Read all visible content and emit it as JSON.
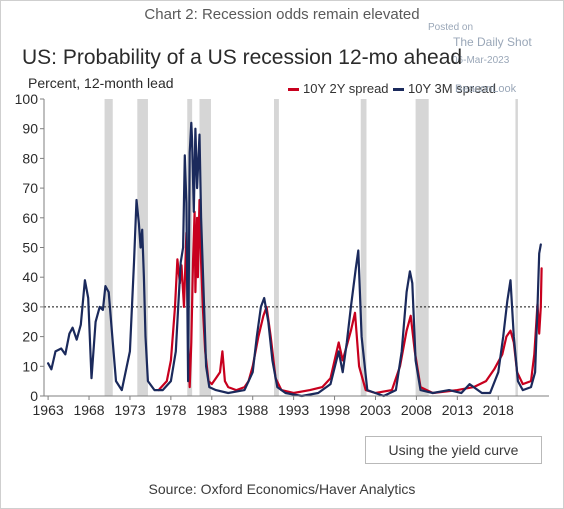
{
  "caption": "Chart 2: Recession odds remain elevated",
  "watermark": {
    "posted": "Posted on",
    "source": "The Daily Shot",
    "date": "06-Mar-2023",
    "brand": "BeaconLook"
  },
  "button_label": "Using the yield curve",
  "source": "Source: Oxford Economics/Haver Analytics",
  "colors": {
    "spread_10y2y": "#c8001e",
    "spread_10y3m": "#1b2a5c",
    "recession": "#d6d6d6"
  },
  "chart_data": {
    "type": "line",
    "title": "US: Probability of a US recession 12-mo ahead",
    "ylabel": "Percent, 12-month lead",
    "xlabel": "",
    "xlim": [
      1962.5,
      2024.2
    ],
    "ylim": [
      0,
      100
    ],
    "x_ticks": [
      1963,
      1968,
      1973,
      1978,
      1983,
      1988,
      1993,
      1998,
      2003,
      2008,
      2013,
      2018
    ],
    "y_ticks": [
      0,
      10,
      20,
      30,
      40,
      50,
      60,
      70,
      80,
      90,
      100
    ],
    "threshold": 30,
    "grid": false,
    "legend": "top-right",
    "recessions": [
      [
        1969.9,
        1970.9
      ],
      [
        1973.9,
        1975.2
      ],
      [
        1980.0,
        1980.6
      ],
      [
        1981.5,
        1982.9
      ],
      [
        1990.6,
        1991.2
      ],
      [
        2001.2,
        2001.9
      ],
      [
        2007.9,
        2009.5
      ],
      [
        2020.1,
        2020.4
      ]
    ],
    "series": [
      {
        "name": "10Y 2Y spread",
        "points": [
          [
            1976.5,
            2
          ],
          [
            1977.5,
            5
          ],
          [
            1978.0,
            12
          ],
          [
            1978.5,
            30
          ],
          [
            1978.8,
            46
          ],
          [
            1979.1,
            38
          ],
          [
            1979.3,
            44
          ],
          [
            1979.6,
            30
          ],
          [
            1979.9,
            55
          ],
          [
            1980.1,
            20
          ],
          [
            1980.3,
            3
          ],
          [
            1980.5,
            18
          ],
          [
            1980.7,
            45
          ],
          [
            1980.9,
            62
          ],
          [
            1981.0,
            35
          ],
          [
            1981.2,
            60
          ],
          [
            1981.3,
            40
          ],
          [
            1981.5,
            66
          ],
          [
            1981.7,
            45
          ],
          [
            1981.9,
            30
          ],
          [
            1982.2,
            15
          ],
          [
            1982.6,
            5
          ],
          [
            1983.0,
            4
          ],
          [
            1983.5,
            6
          ],
          [
            1984.0,
            8
          ],
          [
            1984.3,
            15
          ],
          [
            1984.6,
            5
          ],
          [
            1985.0,
            3
          ],
          [
            1986.0,
            2
          ],
          [
            1987.0,
            3
          ],
          [
            1987.5,
            5
          ],
          [
            1988.0,
            10
          ],
          [
            1988.7,
            20
          ],
          [
            1989.3,
            27
          ],
          [
            1989.7,
            30
          ],
          [
            1990.2,
            20
          ],
          [
            1990.8,
            6
          ],
          [
            1991.5,
            2
          ],
          [
            1993.0,
            1
          ],
          [
            1995.0,
            2
          ],
          [
            1996.5,
            3
          ],
          [
            1997.5,
            6
          ],
          [
            1998.5,
            18
          ],
          [
            1999.0,
            12
          ],
          [
            2000.0,
            22
          ],
          [
            2000.5,
            28
          ],
          [
            2001.0,
            10
          ],
          [
            2001.8,
            2
          ],
          [
            2003.0,
            1
          ],
          [
            2005.0,
            2
          ],
          [
            2006.0,
            10
          ],
          [
            2006.8,
            22
          ],
          [
            2007.3,
            27
          ],
          [
            2007.8,
            15
          ],
          [
            2008.5,
            3
          ],
          [
            2010.0,
            1
          ],
          [
            2013.0,
            2
          ],
          [
            2015.0,
            3
          ],
          [
            2016.5,
            5
          ],
          [
            2017.5,
            9
          ],
          [
            2018.5,
            14
          ],
          [
            2019.0,
            20
          ],
          [
            2019.5,
            22
          ],
          [
            2019.9,
            18
          ],
          [
            2020.3,
            8
          ],
          [
            2021.0,
            4
          ],
          [
            2022.0,
            5
          ],
          [
            2022.4,
            14
          ],
          [
            2022.8,
            31
          ],
          [
            2023.0,
            21
          ],
          [
            2023.2,
            30
          ],
          [
            2023.3,
            43
          ]
        ]
      },
      {
        "name": "10Y 3M spread",
        "points": [
          [
            1963.0,
            11
          ],
          [
            1963.4,
            9
          ],
          [
            1963.9,
            15
          ],
          [
            1964.6,
            16
          ],
          [
            1965.1,
            14
          ],
          [
            1965.6,
            21
          ],
          [
            1966.0,
            23
          ],
          [
            1966.5,
            19
          ],
          [
            1967.0,
            24
          ],
          [
            1967.5,
            39
          ],
          [
            1967.9,
            33
          ],
          [
            1968.3,
            6
          ],
          [
            1968.8,
            25
          ],
          [
            1969.3,
            30
          ],
          [
            1969.7,
            29
          ],
          [
            1970.0,
            37
          ],
          [
            1970.4,
            35
          ],
          [
            1970.9,
            18
          ],
          [
            1971.3,
            5
          ],
          [
            1972.0,
            2
          ],
          [
            1973.0,
            15
          ],
          [
            1973.5,
            45
          ],
          [
            1973.8,
            66
          ],
          [
            1974.1,
            58
          ],
          [
            1974.3,
            50
          ],
          [
            1974.5,
            56
          ],
          [
            1974.7,
            40
          ],
          [
            1974.9,
            20
          ],
          [
            1975.2,
            5
          ],
          [
            1976.0,
            2
          ],
          [
            1977.0,
            2
          ],
          [
            1978.0,
            5
          ],
          [
            1978.6,
            15
          ],
          [
            1978.9,
            30
          ],
          [
            1979.2,
            45
          ],
          [
            1979.5,
            50
          ],
          [
            1979.7,
            81
          ],
          [
            1979.9,
            65
          ],
          [
            1980.1,
            5
          ],
          [
            1980.3,
            82
          ],
          [
            1980.5,
            92
          ],
          [
            1980.6,
            86
          ],
          [
            1980.8,
            62
          ],
          [
            1981.0,
            90
          ],
          [
            1981.2,
            70
          ],
          [
            1981.5,
            88
          ],
          [
            1981.7,
            60
          ],
          [
            1982.0,
            35
          ],
          [
            1982.3,
            10
          ],
          [
            1982.7,
            3
          ],
          [
            1983.5,
            2
          ],
          [
            1985.0,
            1
          ],
          [
            1987.0,
            2
          ],
          [
            1988.0,
            8
          ],
          [
            1988.5,
            20
          ],
          [
            1989.0,
            30
          ],
          [
            1989.4,
            33
          ],
          [
            1989.9,
            25
          ],
          [
            1990.4,
            12
          ],
          [
            1991.0,
            3
          ],
          [
            1992.0,
            1
          ],
          [
            1994.0,
            0
          ],
          [
            1996.0,
            1
          ],
          [
            1997.5,
            4
          ],
          [
            1998.5,
            15
          ],
          [
            1999.0,
            8
          ],
          [
            1999.5,
            18
          ],
          [
            2000.0,
            30
          ],
          [
            2000.6,
            43
          ],
          [
            2000.9,
            49
          ],
          [
            2001.3,
            20
          ],
          [
            2002.0,
            2
          ],
          [
            2004.0,
            0
          ],
          [
            2005.5,
            2
          ],
          [
            2006.2,
            15
          ],
          [
            2006.8,
            35
          ],
          [
            2007.2,
            42
          ],
          [
            2007.5,
            38
          ],
          [
            2007.9,
            12
          ],
          [
            2008.5,
            2
          ],
          [
            2010.0,
            1
          ],
          [
            2012.0,
            2
          ],
          [
            2013.5,
            1
          ],
          [
            2014.5,
            4
          ],
          [
            2016.0,
            1
          ],
          [
            2017.0,
            1
          ],
          [
            2018.0,
            8
          ],
          [
            2018.6,
            20
          ],
          [
            2019.1,
            32
          ],
          [
            2019.5,
            39
          ],
          [
            2019.9,
            20
          ],
          [
            2020.4,
            5
          ],
          [
            2021.0,
            2
          ],
          [
            2022.0,
            3
          ],
          [
            2022.5,
            8
          ],
          [
            2022.8,
            30
          ],
          [
            2023.0,
            48
          ],
          [
            2023.2,
            51
          ]
        ]
      }
    ]
  }
}
